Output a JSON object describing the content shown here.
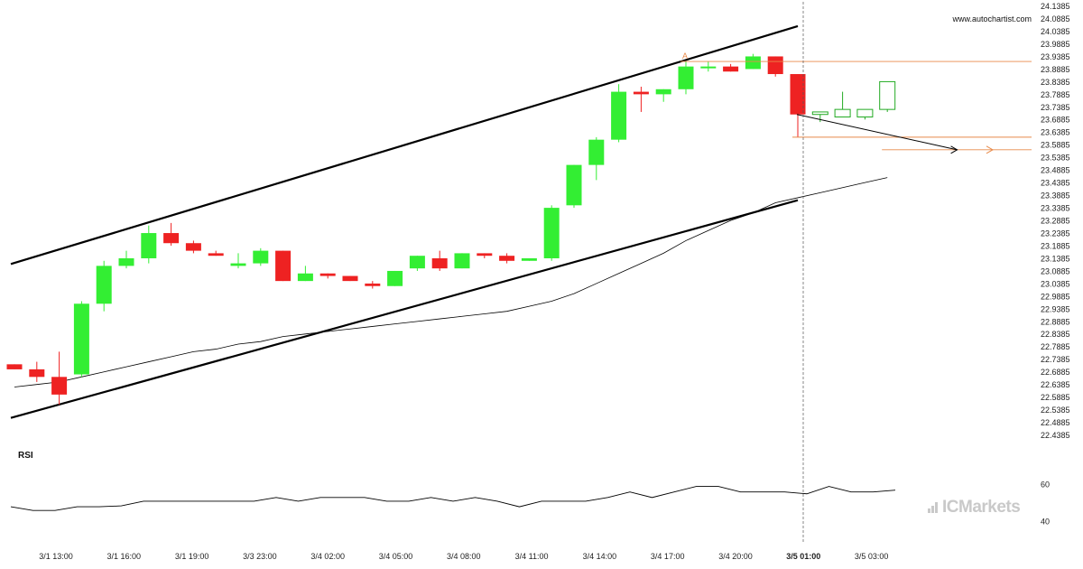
{
  "watermark": "www.autochartist.com",
  "brand": "ICMarkets",
  "rsi_label": "RSI",
  "colors": {
    "bull": "#33ee33",
    "bear": "#ee2222",
    "pattern_line": "#000000",
    "level_line": "#e88a4a",
    "ma_line": "#000000",
    "rsi_line": "#000000",
    "future_candle": "#22aa22"
  },
  "chart_data": {
    "type": "candlestick",
    "price_axis": {
      "ticks": [
        "24.1385",
        "24.0885",
        "24.0385",
        "23.9885",
        "23.9385",
        "23.8885",
        "23.8385",
        "23.7885",
        "23.7385",
        "23.6885",
        "23.6385",
        "23.5885",
        "23.5385",
        "23.4885",
        "23.4385",
        "23.3885",
        "23.3385",
        "23.2885",
        "23.2385",
        "23.1885",
        "23.1385",
        "23.0885",
        "23.0385",
        "22.9885",
        "22.9385",
        "22.8885",
        "22.8385",
        "22.7885",
        "22.7385",
        "22.6885",
        "22.6385",
        "22.5885",
        "22.5385",
        "22.4885",
        "22.4385"
      ],
      "range": [
        22.4385,
        24.1385
      ]
    },
    "time_axis": {
      "labels": [
        "3/1 13:00",
        "3/1 16:00",
        "3/1 19:00",
        "3/3 23:00",
        "3/4 02:00",
        "3/4 05:00",
        "3/4 08:00",
        "3/4 11:00",
        "3/4 14:00",
        "3/4 17:00",
        "3/4 20:00",
        "3/5 01:00",
        "3/5 03:00"
      ],
      "highlighted": "3/5 01:00"
    },
    "candles": [
      {
        "o": 22.72,
        "h": 22.72,
        "l": 22.7,
        "c": 22.7
      },
      {
        "o": 22.7,
        "h": 22.73,
        "l": 22.65,
        "c": 22.67
      },
      {
        "o": 22.67,
        "h": 22.77,
        "l": 22.56,
        "c": 22.6
      },
      {
        "o": 22.68,
        "h": 22.97,
        "l": 22.67,
        "c": 22.96
      },
      {
        "o": 22.96,
        "h": 23.13,
        "l": 22.93,
        "c": 23.11
      },
      {
        "o": 23.11,
        "h": 23.17,
        "l": 23.1,
        "c": 23.14
      },
      {
        "o": 23.14,
        "h": 23.27,
        "l": 23.12,
        "c": 23.24
      },
      {
        "o": 23.24,
        "h": 23.28,
        "l": 23.19,
        "c": 23.2
      },
      {
        "o": 23.2,
        "h": 23.21,
        "l": 23.16,
        "c": 23.17
      },
      {
        "o": 23.16,
        "h": 23.17,
        "l": 23.15,
        "c": 23.15
      },
      {
        "o": 23.11,
        "h": 23.16,
        "l": 23.1,
        "c": 23.12
      },
      {
        "o": 23.12,
        "h": 23.18,
        "l": 23.11,
        "c": 23.17
      },
      {
        "o": 23.17,
        "h": 23.17,
        "l": 23.05,
        "c": 23.05
      },
      {
        "o": 23.05,
        "h": 23.11,
        "l": 23.05,
        "c": 23.08
      },
      {
        "o": 23.08,
        "h": 23.08,
        "l": 23.06,
        "c": 23.07
      },
      {
        "o": 23.07,
        "h": 23.07,
        "l": 23.05,
        "c": 23.05
      },
      {
        "o": 23.04,
        "h": 23.05,
        "l": 23.02,
        "c": 23.03
      },
      {
        "o": 23.03,
        "h": 23.09,
        "l": 23.03,
        "c": 23.09
      },
      {
        "o": 23.1,
        "h": 23.15,
        "l": 23.09,
        "c": 23.15
      },
      {
        "o": 23.14,
        "h": 23.17,
        "l": 23.09,
        "c": 23.1
      },
      {
        "o": 23.1,
        "h": 23.16,
        "l": 23.1,
        "c": 23.16
      },
      {
        "o": 23.16,
        "h": 23.16,
        "l": 23.14,
        "c": 23.15
      },
      {
        "o": 23.15,
        "h": 23.16,
        "l": 23.12,
        "c": 23.13
      },
      {
        "o": 23.13,
        "h": 23.14,
        "l": 23.13,
        "c": 23.14
      },
      {
        "o": 23.14,
        "h": 23.35,
        "l": 23.13,
        "c": 23.34
      },
      {
        "o": 23.35,
        "h": 23.51,
        "l": 23.34,
        "c": 23.51
      },
      {
        "o": 23.51,
        "h": 23.62,
        "l": 23.45,
        "c": 23.61
      },
      {
        "o": 23.61,
        "h": 23.83,
        "l": 23.6,
        "c": 23.8
      },
      {
        "o": 23.8,
        "h": 23.82,
        "l": 23.72,
        "c": 23.79
      },
      {
        "o": 23.79,
        "h": 23.81,
        "l": 23.76,
        "c": 23.81
      },
      {
        "o": 23.81,
        "h": 23.92,
        "l": 23.79,
        "c": 23.9
      },
      {
        "o": 23.9,
        "h": 23.92,
        "l": 23.88,
        "c": 23.9
      },
      {
        "o": 23.9,
        "h": 23.91,
        "l": 23.88,
        "c": 23.88
      },
      {
        "o": 23.89,
        "h": 23.95,
        "l": 23.89,
        "c": 23.94
      },
      {
        "o": 23.94,
        "h": 23.94,
        "l": 23.86,
        "c": 23.87
      },
      {
        "o": 23.87,
        "h": 23.87,
        "l": 23.62,
        "c": 23.71
      }
    ],
    "future_candles": [
      {
        "o": 23.71,
        "h": 23.72,
        "l": 23.68,
        "c": 23.72
      },
      {
        "o": 23.7,
        "h": 23.8,
        "l": 23.7,
        "c": 23.73
      },
      {
        "o": 23.7,
        "h": 23.73,
        "l": 23.69,
        "c": 23.73
      },
      {
        "o": 23.73,
        "h": 23.84,
        "l": 23.72,
        "c": 23.84
      }
    ],
    "moving_average": [
      22.63,
      22.64,
      22.65,
      22.67,
      22.69,
      22.71,
      22.73,
      22.75,
      22.77,
      22.78,
      22.8,
      22.81,
      22.83,
      22.84,
      22.85,
      22.86,
      22.87,
      22.88,
      22.89,
      22.9,
      22.91,
      22.92,
      22.93,
      22.95,
      22.97,
      23.0,
      23.04,
      23.08,
      23.12,
      23.16,
      23.21,
      23.25,
      23.29,
      23.32,
      23.36,
      23.38,
      23.4,
      23.42,
      23.44,
      23.46
    ],
    "channel": {
      "upper": {
        "from": {
          "i": 0,
          "price": 23.12
        },
        "to": {
          "i": 35,
          "price": 24.06
        }
      },
      "lower": {
        "from": {
          "i": 0,
          "price": 22.51
        },
        "to": {
          "i": 35,
          "price": 23.37
        }
      }
    },
    "levels": [
      {
        "price": 23.92,
        "from_i": 30,
        "to_i": 43
      },
      {
        "price": 23.62,
        "from_i": 35,
        "to_i": 43
      },
      {
        "price": 23.57,
        "from_i": 39,
        "to_i": 43
      }
    ],
    "forecast_arrow": {
      "from": {
        "i": 35,
        "price": 23.71
      },
      "to": {
        "i": 42,
        "price": 23.57
      }
    },
    "pattern_point_label": "A",
    "pattern_point_index": 30,
    "rsi": {
      "ticks": [
        "60",
        "40"
      ],
      "range": [
        30,
        70
      ],
      "values": [
        48,
        46,
        46,
        48,
        48,
        48.5,
        51,
        51,
        51,
        51,
        51,
        51,
        53,
        51,
        53,
        53,
        53,
        51,
        51,
        53,
        51,
        53,
        51,
        48,
        51,
        51,
        51,
        53,
        56,
        53,
        56,
        59,
        59,
        56,
        56,
        56,
        55,
        59,
        56,
        56,
        57
      ]
    }
  }
}
